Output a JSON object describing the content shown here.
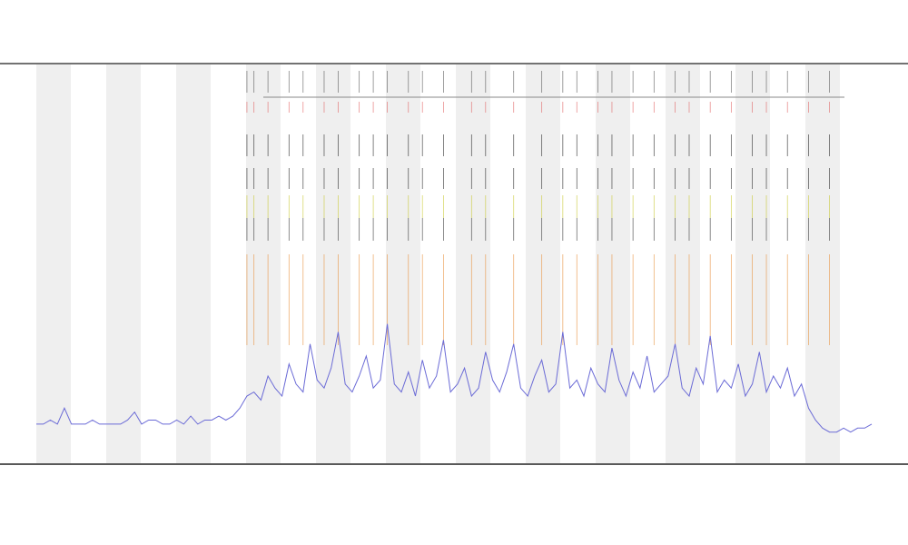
{
  "chart_data": {
    "type": "line",
    "ylim": [
      0,
      100
    ],
    "xlim": [
      0,
      119
    ],
    "series": [
      {
        "color": "#6b6bd6",
        "values": [
          10,
          10,
          11,
          10,
          14,
          10,
          10,
          10,
          11,
          10,
          10,
          10,
          10,
          11,
          13,
          10,
          11,
          11,
          10,
          10,
          11,
          10,
          12,
          10,
          11,
          11,
          12,
          11,
          12,
          14,
          17,
          18,
          16,
          22,
          19,
          17,
          25,
          20,
          18,
          30,
          21,
          19,
          24,
          33,
          20,
          18,
          22,
          27,
          19,
          21,
          35,
          20,
          18,
          23,
          17,
          26,
          19,
          22,
          31,
          18,
          20,
          24,
          17,
          19,
          28,
          21,
          18,
          23,
          30,
          19,
          17,
          22,
          26,
          18,
          20,
          33,
          19,
          21,
          17,
          24,
          20,
          18,
          29,
          21,
          17,
          23,
          19,
          27,
          18,
          20,
          22,
          30,
          19,
          17,
          24,
          20,
          32,
          18,
          21,
          19,
          25,
          17,
          20,
          28,
          18,
          22,
          19,
          24,
          17,
          20,
          14,
          11,
          9,
          8,
          8,
          9,
          8,
          9,
          9,
          10
        ]
      }
    ],
    "events": [
      30,
      31,
      33,
      36,
      38,
      41,
      43,
      46,
      48,
      50,
      53,
      55,
      58,
      62,
      64,
      68,
      72,
      75,
      77,
      80,
      82,
      85,
      88,
      91,
      93,
      96,
      99,
      102,
      104,
      107,
      110,
      113
    ],
    "event_row_colors": [
      "#555555",
      "#e06060",
      "#222222",
      "#222222",
      "#c8c830",
      "#333333",
      "#e8903a"
    ]
  }
}
